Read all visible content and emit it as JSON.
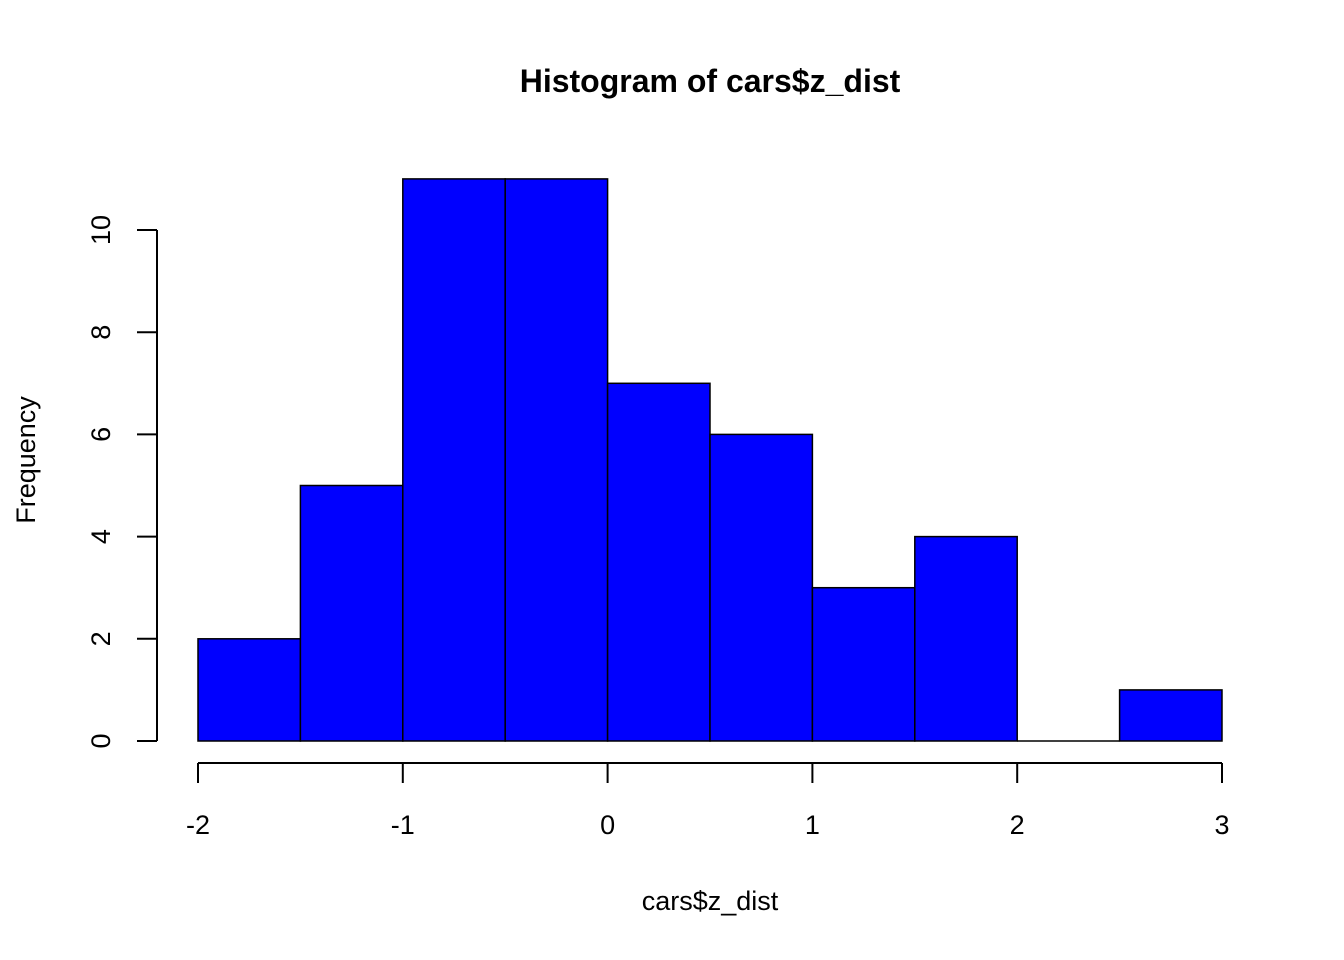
{
  "chart_data": {
    "type": "bar",
    "subtype": "histogram",
    "title": "Histogram of cars$z_dist",
    "xlabel": "cars$z_dist",
    "ylabel": "Frequency",
    "bins": [
      {
        "from": -2.0,
        "to": -1.5,
        "count": 2
      },
      {
        "from": -1.5,
        "to": -1.0,
        "count": 5
      },
      {
        "from": -1.0,
        "to": -0.5,
        "count": 11
      },
      {
        "from": -0.5,
        "to": 0.0,
        "count": 11
      },
      {
        "from": 0.0,
        "to": 0.5,
        "count": 7
      },
      {
        "from": 0.5,
        "to": 1.0,
        "count": 6
      },
      {
        "from": 1.0,
        "to": 1.5,
        "count": 3
      },
      {
        "from": 1.5,
        "to": 2.0,
        "count": 4
      },
      {
        "from": 2.0,
        "to": 2.5,
        "count": 0
      },
      {
        "from": 2.5,
        "to": 3.0,
        "count": 1
      }
    ],
    "xlim": [
      -2,
      3
    ],
    "ylim": [
      0,
      11
    ],
    "x_ticks": [
      "-2",
      "-1",
      "0",
      "1",
      "2",
      "3"
    ],
    "y_ticks": [
      "0",
      "2",
      "4",
      "6",
      "8",
      "10"
    ],
    "bar_color": "#0000ff",
    "bar_border_color": "#000000",
    "grid": false,
    "legend": "none"
  }
}
